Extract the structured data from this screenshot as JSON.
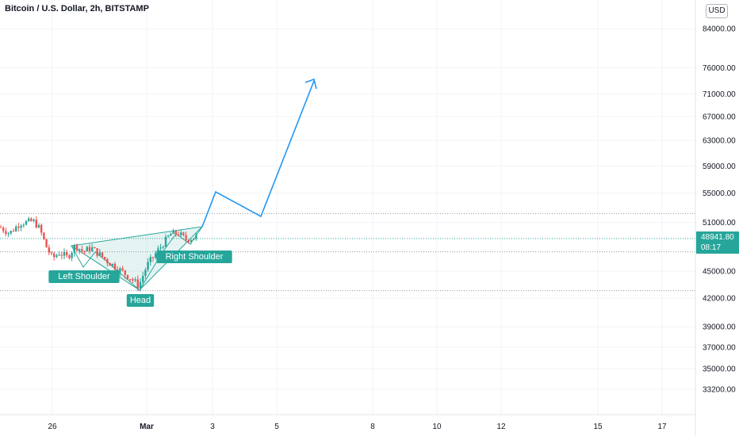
{
  "header": {
    "title": "Bitcoin / U.S. Dollar, 2h, BITSTAMP"
  },
  "axis": {
    "currency_button": "USD",
    "last_price": "48941.80",
    "countdown": "08:17"
  },
  "colors": {
    "up": "#26a69a",
    "down": "#ef5350",
    "pattern_fill": "#26a69a",
    "projection": "#2196f3",
    "grid": "#f0f3fa",
    "axis_text": "#131722"
  },
  "annotations": {
    "left_shoulder": "Left Shoulder",
    "head": "Head",
    "right_shoulder": "Right Shoulder"
  },
  "chart_data": {
    "type": "candlestick",
    "symbol": "Bitcoin / U.S. Dollar",
    "interval": "2h",
    "exchange": "BITSTAMP",
    "y_scale": "log",
    "ylim": [
      32000,
      86000
    ],
    "y_ticks": [
      84000,
      76000,
      71000,
      67000,
      63000,
      59000,
      55000,
      51000,
      45000,
      42000,
      39000,
      37000,
      35000,
      33200
    ],
    "x_ticks": [
      "26",
      "Mar",
      "3",
      "5",
      "8",
      "10",
      "12",
      "15",
      "17"
    ],
    "last_price": 48941.8,
    "levels": [
      {
        "name": "upper",
        "value": 52200
      },
      {
        "name": "last",
        "value": 48941.8
      },
      {
        "name": "neckline",
        "value": 47300
      },
      {
        "name": "lower",
        "value": 42800
      }
    ],
    "ohlc_range_approx": {
      "start": "2021-02-24",
      "end": "2021-03-02",
      "low": 43000,
      "high": 52000
    },
    "projection_path": [
      {
        "date": "Mar 2",
        "price": 49800
      },
      {
        "date": "Mar 3",
        "price": 55000
      },
      {
        "date": "Mar 4.5",
        "price": 51800
      },
      {
        "date": "Mar 6.2",
        "price": 72500
      }
    ],
    "pattern": "inverse head and shoulders"
  }
}
